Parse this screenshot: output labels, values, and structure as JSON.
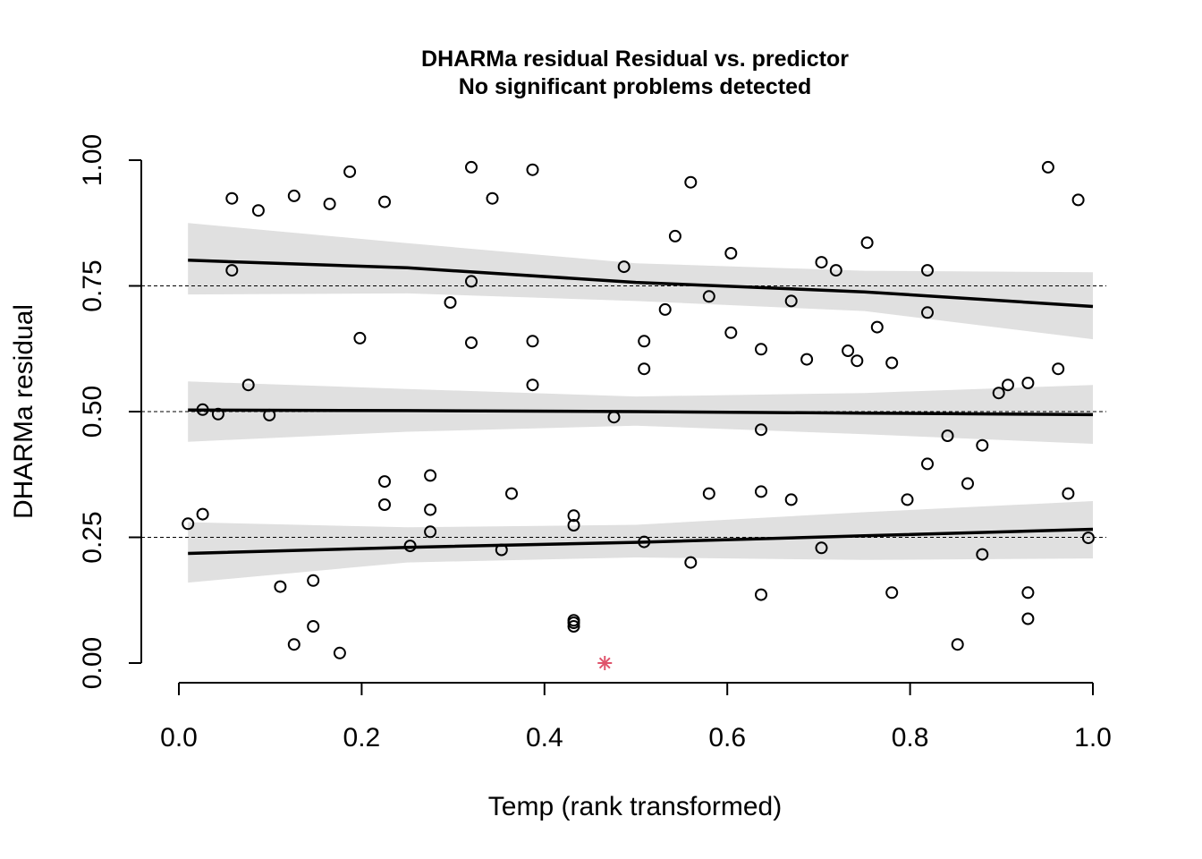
{
  "chart_data": {
    "type": "scatter",
    "title": "DHARMa residual Residual vs. predictor",
    "subtitle": "No significant problems detected",
    "xlabel": "Temp (rank transformed)",
    "ylabel": "DHARMa residual",
    "xlim": [
      0,
      1
    ],
    "ylim": [
      0,
      1
    ],
    "xticks": [
      0.0,
      0.2,
      0.4,
      0.6,
      0.8,
      1.0
    ],
    "xtick_labels": [
      "0.0",
      "0.2",
      "0.4",
      "0.6",
      "0.8",
      "1.0"
    ],
    "yticks": [
      0.0,
      0.25,
      0.5,
      0.75,
      1.0
    ],
    "ytick_labels": [
      "0.00",
      "0.25",
      "0.50",
      "0.75",
      "1.00"
    ],
    "reference_lines": [
      0.25,
      0.5,
      0.75
    ],
    "colors": {
      "points": "#000000",
      "outlier": "#df536b",
      "band": "#e0e0e0",
      "line": "#000000"
    },
    "points": [
      [
        0.01,
        0.277
      ],
      [
        0.026,
        0.296
      ],
      [
        0.026,
        0.504
      ],
      [
        0.043,
        0.495
      ],
      [
        0.058,
        0.924
      ],
      [
        0.058,
        0.781
      ],
      [
        0.076,
        0.553
      ],
      [
        0.087,
        0.9
      ],
      [
        0.099,
        0.493
      ],
      [
        0.111,
        0.152
      ],
      [
        0.126,
        0.929
      ],
      [
        0.126,
        0.037
      ],
      [
        0.147,
        0.164
      ],
      [
        0.147,
        0.073
      ],
      [
        0.165,
        0.913
      ],
      [
        0.176,
        0.02
      ],
      [
        0.187,
        0.977
      ],
      [
        0.198,
        0.646
      ],
      [
        0.225,
        0.917
      ],
      [
        0.225,
        0.361
      ],
      [
        0.225,
        0.315
      ],
      [
        0.253,
        0.233
      ],
      [
        0.275,
        0.373
      ],
      [
        0.275,
        0.305
      ],
      [
        0.275,
        0.261
      ],
      [
        0.297,
        0.717
      ],
      [
        0.32,
        0.986
      ],
      [
        0.32,
        0.759
      ],
      [
        0.32,
        0.637
      ],
      [
        0.343,
        0.924
      ],
      [
        0.353,
        0.225
      ],
      [
        0.364,
        0.337
      ],
      [
        0.387,
        0.981
      ],
      [
        0.387,
        0.64
      ],
      [
        0.387,
        0.553
      ],
      [
        0.432,
        0.293
      ],
      [
        0.432,
        0.274
      ],
      [
        0.432,
        0.085
      ],
      [
        0.432,
        0.08
      ],
      [
        0.432,
        0.073
      ],
      [
        0.476,
        0.489
      ],
      [
        0.487,
        0.788
      ],
      [
        0.509,
        0.64
      ],
      [
        0.509,
        0.585
      ],
      [
        0.509,
        0.241
      ],
      [
        0.532,
        0.703
      ],
      [
        0.543,
        0.849
      ],
      [
        0.56,
        0.956
      ],
      [
        0.56,
        0.2
      ],
      [
        0.58,
        0.729
      ],
      [
        0.58,
        0.337
      ],
      [
        0.604,
        0.815
      ],
      [
        0.604,
        0.657
      ],
      [
        0.637,
        0.624
      ],
      [
        0.637,
        0.464
      ],
      [
        0.637,
        0.341
      ],
      [
        0.637,
        0.136
      ],
      [
        0.67,
        0.72
      ],
      [
        0.67,
        0.325
      ],
      [
        0.687,
        0.604
      ],
      [
        0.703,
        0.797
      ],
      [
        0.703,
        0.229
      ],
      [
        0.719,
        0.781
      ],
      [
        0.732,
        0.621
      ],
      [
        0.742,
        0.601
      ],
      [
        0.753,
        0.836
      ],
      [
        0.764,
        0.668
      ],
      [
        0.78,
        0.597
      ],
      [
        0.78,
        0.14
      ],
      [
        0.797,
        0.325
      ],
      [
        0.819,
        0.781
      ],
      [
        0.819,
        0.697
      ],
      [
        0.819,
        0.396
      ],
      [
        0.841,
        0.452
      ],
      [
        0.852,
        0.037
      ],
      [
        0.863,
        0.357
      ],
      [
        0.879,
        0.433
      ],
      [
        0.879,
        0.216
      ],
      [
        0.897,
        0.537
      ],
      [
        0.907,
        0.553
      ],
      [
        0.929,
        0.557
      ],
      [
        0.929,
        0.14
      ],
      [
        0.929,
        0.088
      ],
      [
        0.951,
        0.986
      ],
      [
        0.962,
        0.585
      ],
      [
        0.973,
        0.337
      ],
      [
        0.984,
        0.921
      ],
      [
        0.995,
        0.249
      ]
    ],
    "outliers": [
      [
        0.466,
        0.0
      ]
    ],
    "quantile_lines": [
      {
        "quantile": 0.25,
        "x": [
          0.01,
          0.25,
          0.5,
          0.75,
          1.0
        ],
        "y": [
          0.218,
          0.23,
          0.24,
          0.253,
          0.266
        ],
        "lower": [
          0.16,
          0.2,
          0.21,
          0.205,
          0.208
        ],
        "upper": [
          0.28,
          0.27,
          0.275,
          0.3,
          0.322
        ]
      },
      {
        "quantile": 0.5,
        "x": [
          0.01,
          0.25,
          0.5,
          0.75,
          1.0
        ],
        "y": [
          0.503,
          0.502,
          0.5,
          0.497,
          0.494
        ],
        "lower": [
          0.44,
          0.46,
          0.472,
          0.455,
          0.436
        ],
        "upper": [
          0.56,
          0.545,
          0.53,
          0.537,
          0.553
        ]
      },
      {
        "quantile": 0.75,
        "x": [
          0.01,
          0.25,
          0.5,
          0.75,
          1.0
        ],
        "y": [
          0.801,
          0.786,
          0.757,
          0.738,
          0.709
        ],
        "lower": [
          0.733,
          0.735,
          0.72,
          0.7,
          0.644
        ],
        "upper": [
          0.875,
          0.835,
          0.795,
          0.78,
          0.777
        ]
      }
    ]
  }
}
